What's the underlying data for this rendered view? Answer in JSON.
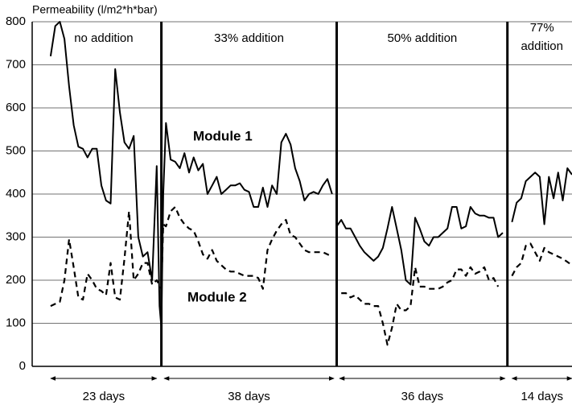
{
  "chart_data": {
    "type": "line",
    "y_label": "Permeability (l/m2*h*bar)",
    "ylim": [
      0,
      800
    ],
    "yticks": [
      0,
      100,
      200,
      300,
      400,
      500,
      600,
      700,
      800
    ],
    "xlim": [
      -4,
      113
    ],
    "grid": true,
    "dividers": [
      24,
      62,
      99
    ],
    "phases": [
      {
        "label": [
          "no addition"
        ],
        "duration": "23 days",
        "start": 0,
        "end": 23
      },
      {
        "label": [
          "33% addition"
        ],
        "duration": "38 days",
        "start": 24.6,
        "end": 61.4
      },
      {
        "label": [
          "50% addition"
        ],
        "duration": "36 days",
        "start": 62.6,
        "end": 98.5
      },
      {
        "label": [
          "77%",
          "addition"
        ],
        "duration": "14 days",
        "start": 100,
        "end": 113
      }
    ],
    "annotations": [
      "Module 1",
      "Module 2"
    ],
    "series": [
      {
        "name": "Module 1",
        "color": "#000000",
        "dash": false,
        "x": [
          0,
          1,
          2,
          3,
          4,
          5,
          6,
          7,
          8,
          9,
          10,
          11,
          12,
          13,
          14,
          15,
          16,
          17,
          18,
          19,
          20,
          21,
          22,
          23,
          23.6,
          24,
          24.4,
          25,
          26,
          27,
          28,
          29,
          30,
          31,
          32,
          33,
          34,
          35,
          36,
          37,
          38,
          39,
          40,
          41,
          42,
          43,
          44,
          45,
          46,
          47,
          48,
          49,
          50,
          51,
          52,
          53,
          54,
          55,
          56,
          57,
          58,
          59,
          60,
          61,
          null,
          62,
          63,
          64,
          65,
          66,
          67,
          68,
          69,
          70,
          71,
          72,
          73,
          74,
          75,
          76,
          77,
          78,
          79,
          80,
          81,
          82,
          83,
          84,
          85,
          86,
          87,
          88,
          89,
          90,
          91,
          92,
          93,
          94,
          95,
          96,
          97,
          98,
          null,
          100,
          101,
          102,
          103,
          104,
          105,
          106,
          107,
          108,
          109,
          110,
          111,
          112,
          113
        ],
        "values": [
          720,
          790,
          800,
          760,
          650,
          560,
          510,
          505,
          485,
          505,
          505,
          420,
          385,
          378,
          690,
          590,
          520,
          505,
          535,
          300,
          255,
          265,
          200,
          465,
          140,
          90,
          400,
          565,
          480,
          475,
          460,
          495,
          450,
          485,
          455,
          470,
          400,
          420,
          440,
          400,
          410,
          420,
          420,
          425,
          410,
          405,
          370,
          370,
          415,
          370,
          420,
          400,
          520,
          540,
          515,
          460,
          430,
          385,
          400,
          405,
          400,
          420,
          435,
          400,
          null,
          325,
          340,
          320,
          320,
          300,
          280,
          265,
          255,
          245,
          255,
          275,
          320,
          370,
          320,
          270,
          200,
          190,
          345,
          320,
          290,
          280,
          300,
          300,
          310,
          320,
          370,
          370,
          320,
          325,
          370,
          355,
          350,
          350,
          345,
          345,
          300,
          310,
          null,
          335,
          380,
          390,
          430,
          440,
          450,
          440,
          330,
          440,
          390,
          450,
          385,
          460,
          445
        ]
      },
      {
        "name": "Module 2",
        "color": "#000000",
        "dash": true,
        "x": [
          0,
          1,
          2,
          3,
          4,
          5,
          6,
          7,
          8,
          9,
          10,
          11,
          12,
          13,
          14,
          15,
          16,
          17,
          18,
          19,
          20,
          21,
          22,
          23,
          24,
          24.4,
          25,
          26,
          27,
          28,
          29,
          30,
          31,
          32,
          33,
          34,
          35,
          36,
          37,
          38,
          39,
          40,
          41,
          42,
          43,
          44,
          45,
          46,
          47,
          48,
          49,
          50,
          51,
          52,
          53,
          54,
          55,
          56,
          57,
          58,
          59,
          60,
          61,
          null,
          63,
          64,
          65,
          66,
          67,
          68,
          69,
          70,
          71,
          72,
          73,
          74,
          75,
          76,
          77,
          78,
          79,
          80,
          81,
          82,
          83,
          84,
          85,
          86,
          87,
          88,
          89,
          90,
          91,
          92,
          93,
          94,
          95,
          96,
          97,
          null,
          100,
          101,
          102,
          103,
          104,
          105,
          106,
          107,
          108,
          109,
          110,
          111,
          113
        ],
        "values": [
          140,
          145,
          150,
          200,
          295,
          230,
          160,
          155,
          215,
          200,
          180,
          175,
          165,
          240,
          160,
          155,
          250,
          360,
          200,
          215,
          240,
          240,
          190,
          200,
          180,
          330,
          325,
          360,
          370,
          345,
          330,
          320,
          315,
          290,
          260,
          250,
          270,
          245,
          235,
          225,
          220,
          220,
          215,
          210,
          210,
          210,
          205,
          180,
          270,
          295,
          315,
          330,
          340,
          305,
          300,
          285,
          270,
          265,
          265,
          265,
          265,
          260,
          255,
          null,
          170,
          170,
          160,
          165,
          155,
          145,
          145,
          140,
          140,
          100,
          50,
          90,
          145,
          130,
          130,
          140,
          230,
          185,
          185,
          180,
          180,
          180,
          185,
          195,
          200,
          225,
          225,
          210,
          230,
          215,
          220,
          230,
          200,
          205,
          185,
          null,
          210,
          230,
          240,
          280,
          285,
          265,
          245,
          275,
          265,
          260,
          255,
          250,
          235
        ]
      }
    ]
  }
}
